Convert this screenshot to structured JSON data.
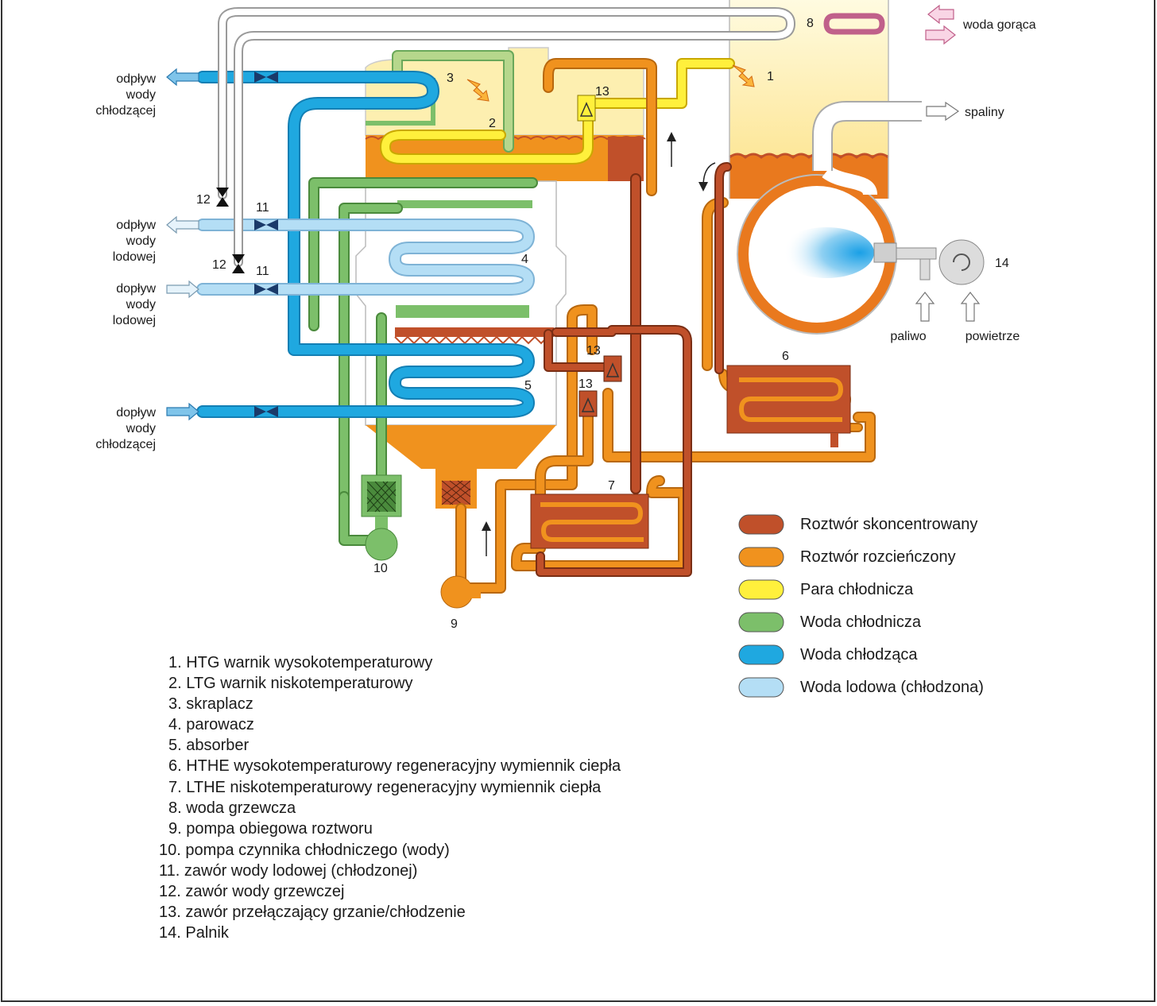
{
  "labels": {
    "outflow_cooling_water": [
      "odpływ",
      "wody",
      "chłodzącej"
    ],
    "outflow_ice_water": [
      "odpływ",
      "wody",
      "lodowej"
    ],
    "inflow_ice_water": [
      "dopływ",
      "wody",
      "lodowej"
    ],
    "inflow_cooling_water": [
      "dopływ",
      "wody",
      "chłodzącej"
    ],
    "hot_water": "woda gorąca",
    "flue_gas": "spaliny",
    "fuel": "paliwo",
    "air": "powietrze"
  },
  "numbers": {
    "n1": "1",
    "n2": "2",
    "n3": "3",
    "n4": "4",
    "n5": "5",
    "n6": "6",
    "n7": "7",
    "n8": "8",
    "n9": "9",
    "n10": "10",
    "n11": "11",
    "n12": "12",
    "n13": "13",
    "n14": "14"
  },
  "legend": [
    {
      "label": "Roztwór skoncentrowany",
      "color": "#c0502a"
    },
    {
      "label": "Roztwór rozcieńczony",
      "color": "#f0921e"
    },
    {
      "label": "Para chłodnicza",
      "color": "#fff03c"
    },
    {
      "label": "Woda chłodnicza",
      "color": "#7cbf6a"
    },
    {
      "label": "Woda chłodząca",
      "color": "#1fa8e0"
    },
    {
      "label": "Woda lodowa (chłodzona)",
      "color": "#b4def5"
    }
  ],
  "components": [
    "1. HTG  warnik wysokotemperaturowy",
    "2. LTG  warnik niskotemperaturowy",
    "3. skraplacz",
    "4. parowacz",
    "5. absorber",
    "6. HTHE  wysokotemperaturowy regeneracyjny wymiennik ciepła",
    "7. LTHE  niskotemperaturowy regeneracyjny wymiennik ciepła",
    "8. woda grzewcza",
    "9. pompa obiegowa roztworu",
    "10. pompa czynnika chłodniczego  (wody)",
    "11. zawór wody lodowej (chłodzonej)",
    "12. zawór wody grzewczej",
    "13. zawór przełączający grzanie/chłodzenie",
    "14. Palnik"
  ]
}
